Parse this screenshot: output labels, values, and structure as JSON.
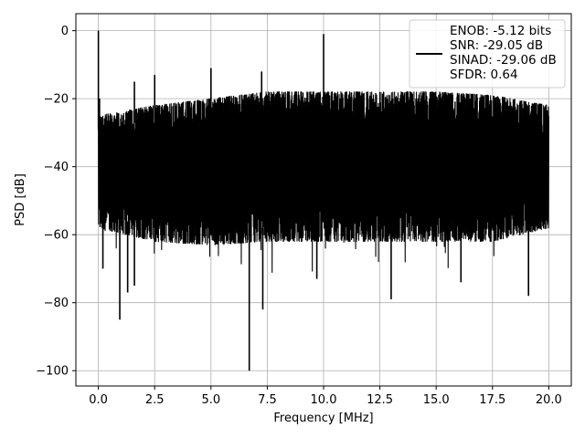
{
  "chart_data": {
    "type": "line",
    "title": "",
    "xlabel": "Frequency [MHz]",
    "ylabel": "PSD [dB]",
    "xlim": [
      -1.0,
      21.0
    ],
    "ylim": [
      -104.5,
      5.0
    ],
    "grid": true,
    "x_ticks": [
      0.0,
      2.5,
      5.0,
      7.5,
      10.0,
      12.5,
      15.0,
      17.5,
      20.0
    ],
    "x_tick_labels": [
      "0.0",
      "2.5",
      "5.0",
      "7.5",
      "10.0",
      "12.5",
      "15.0",
      "17.5",
      "20.0"
    ],
    "y_ticks": [
      0,
      -20,
      -40,
      -60,
      -80,
      -100
    ],
    "y_tick_labels": [
      "0",
      "−20",
      "−40",
      "−60",
      "−80",
      "−100"
    ],
    "legend": {
      "placement": "top-right",
      "entries": [
        "ENOB: -5.12 bits",
        "SNR: -29.05 dB",
        "SINAD: -29.06 dB",
        "SFDR: 0.64"
      ]
    },
    "series": [
      {
        "color": "#000000",
        "x_range": [
          0.0,
          20.0
        ],
        "noise_band_upper": [
          [
            0.0,
            -25
          ],
          [
            2.5,
            -22
          ],
          [
            5.0,
            -20
          ],
          [
            7.5,
            -18
          ],
          [
            10.0,
            -18
          ],
          [
            12.5,
            -18
          ],
          [
            15.0,
            -18
          ],
          [
            17.5,
            -19
          ],
          [
            20.0,
            -22
          ]
        ],
        "noise_band_lower": [
          [
            0.0,
            -58
          ],
          [
            2.5,
            -62
          ],
          [
            5.0,
            -63
          ],
          [
            7.5,
            -62
          ],
          [
            10.0,
            -62
          ],
          [
            12.5,
            -62
          ],
          [
            15.0,
            -62
          ],
          [
            17.5,
            -62
          ],
          [
            20.0,
            -58
          ]
        ],
        "peaks": [
          [
            0.0,
            0.0
          ],
          [
            0.05,
            -20
          ],
          [
            1.6,
            -15
          ],
          [
            2.5,
            -13
          ],
          [
            5.0,
            -11
          ],
          [
            7.25,
            -12
          ],
          [
            10.0,
            -1
          ]
        ],
        "dips": [
          [
            0.2,
            -70
          ],
          [
            0.95,
            -85
          ],
          [
            1.3,
            -77
          ],
          [
            1.6,
            -75
          ],
          [
            6.7,
            -100
          ],
          [
            7.3,
            -82
          ],
          [
            9.7,
            -73
          ],
          [
            13.0,
            -79
          ],
          [
            16.1,
            -74
          ],
          [
            19.1,
            -78
          ]
        ]
      }
    ]
  }
}
